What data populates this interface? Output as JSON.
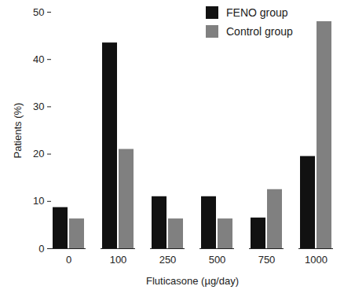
{
  "chart_data": {
    "type": "bar",
    "x_label": "Fluticasone (µg/day)",
    "y_label": "Patients (%)",
    "categories": [
      0,
      100,
      250,
      500,
      750,
      1000
    ],
    "series": [
      {
        "name": "FENO group",
        "color": "#111111",
        "values": [
          8.7,
          43.5,
          11,
          11,
          6.5,
          19.5
        ]
      },
      {
        "name": "Control group",
        "color": "#808080",
        "values": [
          6.3,
          21,
          6.3,
          6.3,
          12.5,
          48
        ]
      }
    ],
    "ylim": [
      0,
      50
    ],
    "yticks": [
      0,
      10,
      20,
      30,
      40,
      50
    ],
    "grid": false,
    "legend": "top-right"
  }
}
